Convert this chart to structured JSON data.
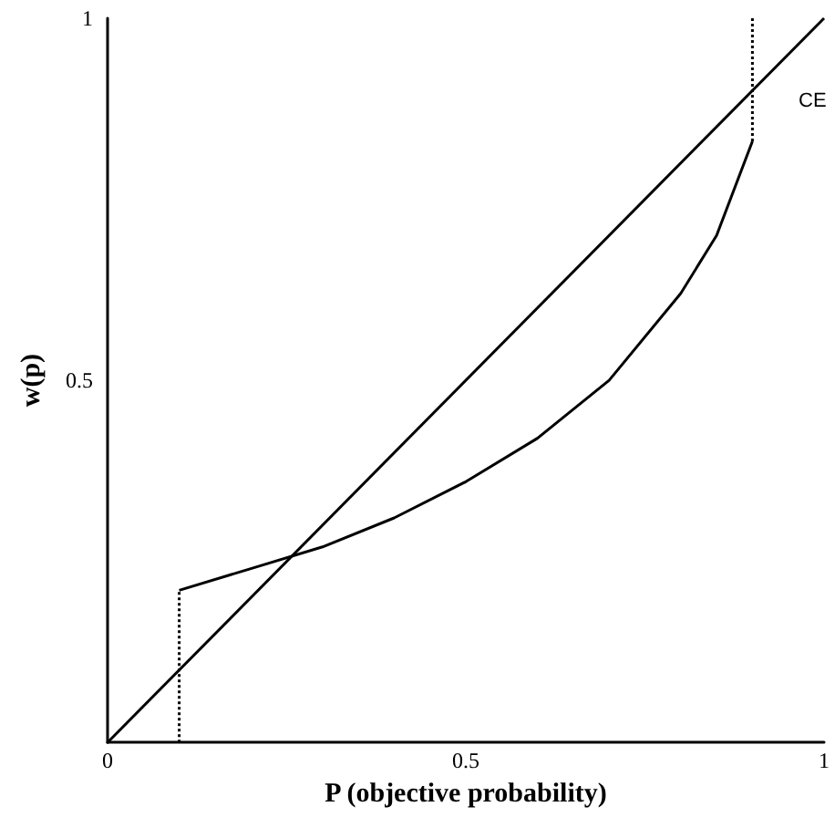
{
  "chart_data": {
    "type": "line",
    "xlabel": "P (objective probability)",
    "ylabel": "w(p)",
    "xlim": [
      0,
      1
    ],
    "ylim": [
      0,
      1
    ],
    "xticks": [
      0,
      0.5,
      1
    ],
    "yticks": [
      0.5,
      1
    ],
    "grid": false,
    "marker": "none",
    "series": [
      {
        "color": "#000000",
        "x": [
          0,
          1
        ],
        "values": [
          0,
          1
        ],
        "line_style": "solid"
      },
      {
        "color": "#000000",
        "x": [
          0.1,
          0.2,
          0.3,
          0.4,
          0.5,
          0.6,
          0.7,
          0.8,
          0.85,
          0.9
        ],
        "values": [
          0.21,
          0.24,
          0.27,
          0.31,
          0.36,
          0.42,
          0.5,
          0.62,
          0.7,
          0.83
        ],
        "line_style": "solid"
      },
      {
        "color": "#000000",
        "x": [
          0.1,
          0.1
        ],
        "values": [
          0,
          0.21
        ],
        "line_style": "dotted"
      },
      {
        "color": "#000000",
        "x": [
          0.9,
          0.9
        ],
        "values": [
          0.83,
          1
        ],
        "line_style": "dotted"
      }
    ],
    "annotations": [
      "CE"
    ]
  }
}
